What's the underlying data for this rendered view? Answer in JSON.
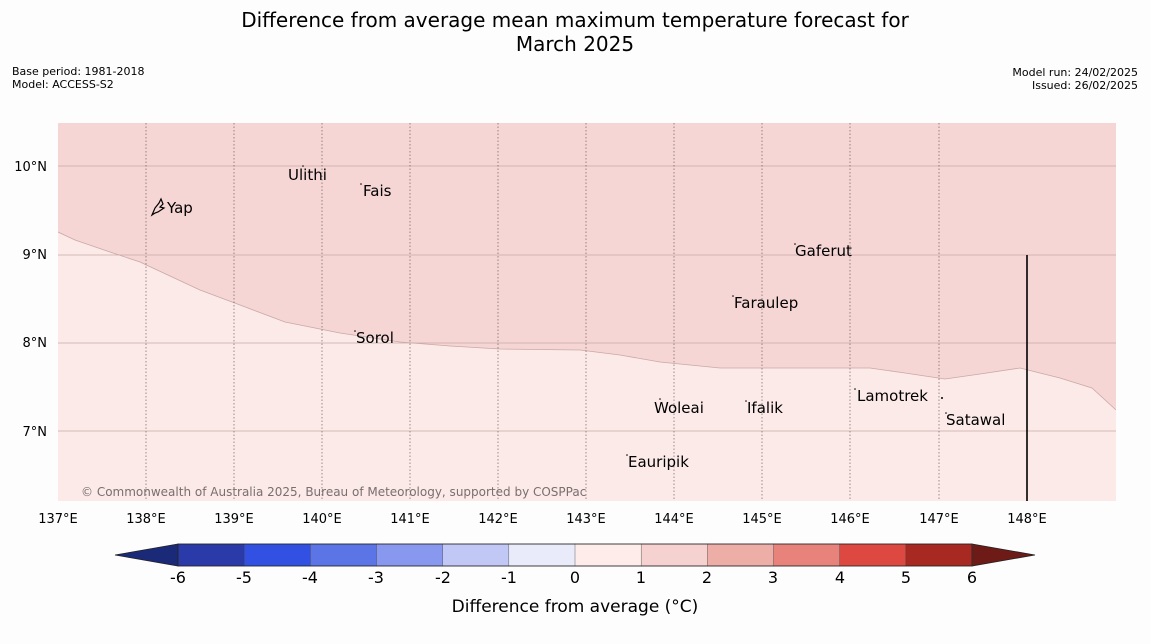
{
  "title_line1": "Difference from average mean maximum temperature forecast for",
  "title_line2": "March 2025",
  "meta_left": {
    "base_period": "Base period: 1981-2018",
    "model": "Model: ACCESS-S2"
  },
  "meta_right": {
    "model_run": "Model run: 24/02/2025",
    "issued": "Issued: 26/02/2025"
  },
  "map": {
    "lon_range": [
      137,
      149
    ],
    "lat_range": [
      6.2,
      10.5
    ],
    "lon_ticks": [
      "137°E",
      "138°E",
      "139°E",
      "140°E",
      "141°E",
      "142°E",
      "143°E",
      "144°E",
      "145°E",
      "146°E",
      "147°E",
      "148°E"
    ],
    "lat_ticks": [
      "10°N",
      "9°N",
      "8°N",
      "7°N"
    ],
    "places": [
      {
        "name": "Yap"
      },
      {
        "name": "Ulithi"
      },
      {
        "name": "Fais"
      },
      {
        "name": "Gaferut"
      },
      {
        "name": "Faraulep"
      },
      {
        "name": "Sorol"
      },
      {
        "name": "Woleai"
      },
      {
        "name": "Ifalik"
      },
      {
        "name": "Lamotrek"
      },
      {
        "name": "Satawal"
      },
      {
        "name": "Eauripik"
      }
    ],
    "anomaly_regions": [
      {
        "range": "1 to 2 °C",
        "color": "#f5d6d4"
      },
      {
        "range": "0 to 1 °C",
        "color": "#fbeae8"
      }
    ],
    "copyright": "© Commonwealth of Australia 2025, Bureau of Meteorology, supported by COSPPac"
  },
  "colorbar": {
    "label": "Difference from average (°C)",
    "ticks": [
      "-6",
      "-5",
      "-4",
      "-3",
      "-2",
      "-1",
      "0",
      "1",
      "2",
      "3",
      "4",
      "5",
      "6"
    ],
    "colors": [
      "#2a3aa8",
      "#3251e3",
      "#5b74e6",
      "#8898ee",
      "#c1c8f5",
      "#e9ebfb",
      "#fdecea",
      "#f5d1cf",
      "#eeaea8",
      "#e8837c",
      "#dd4840",
      "#a82822"
    ],
    "under_color": "#1b2a78",
    "over_color": "#6e1a16"
  }
}
